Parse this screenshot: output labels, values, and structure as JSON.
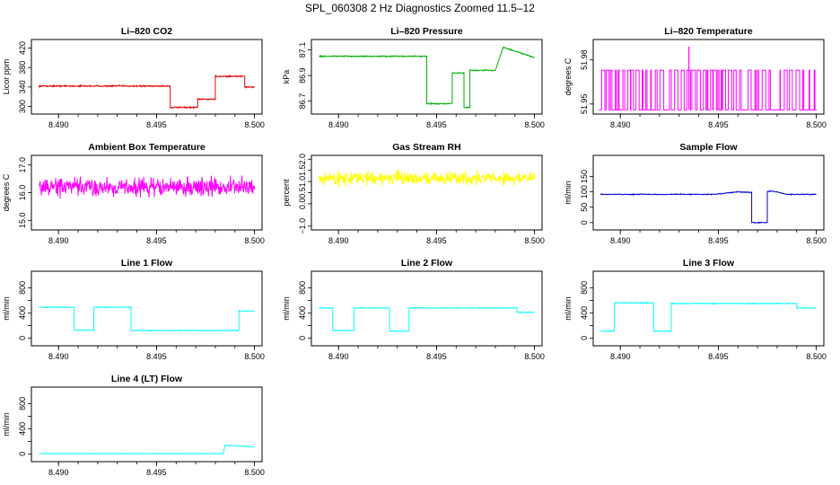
{
  "page": {
    "title": "SPL_060308  2 Hz Diagnostics Zoomed 11.5–12"
  },
  "chart_data": [
    {
      "id": "li820-co2",
      "type": "line",
      "title": "Li–820 CO2",
      "xlabel": "",
      "ylabel": "Licor ppm",
      "xlim": [
        8.4888,
        8.5002
      ],
      "ylim": [
        290,
        432
      ],
      "xticks": [
        8.49,
        8.495,
        8.5
      ],
      "xtick_labels": [
        "8.490",
        "8.495",
        "8.500"
      ],
      "yticks": [
        300,
        340,
        380,
        420
      ],
      "ytick_labels": [
        "300",
        "340",
        "380",
        "420"
      ],
      "color": "#e00000",
      "noise": 1.2,
      "series": [
        {
          "x": [
            8.489,
            8.4957,
            8.4957,
            8.4971,
            8.4971,
            8.498,
            8.498,
            8.4995,
            8.4995,
            8.5
          ],
          "y": [
            342,
            342,
            298,
            298,
            315,
            315,
            362,
            362,
            340,
            340
          ]
        }
      ]
    },
    {
      "id": "li820-pressure",
      "type": "line",
      "title": "Li–820 Pressure",
      "xlabel": "",
      "ylabel": "kPa",
      "xlim": [
        8.4888,
        8.5002
      ],
      "ylim": [
        86.62,
        87.16
      ],
      "xticks": [
        8.49,
        8.495,
        8.5
      ],
      "xtick_labels": [
        "8.490",
        "8.495",
        "8.500"
      ],
      "yticks": [
        86.7,
        86.9,
        87.1
      ],
      "ytick_labels": [
        "86.7",
        "86.9",
        "87.1"
      ],
      "color": "#00b000",
      "noise": 0.004,
      "series": [
        {
          "x": [
            8.489,
            8.4945,
            8.4945,
            8.4958,
            8.4958,
            8.4964,
            8.4964,
            8.4967,
            8.4967,
            8.498,
            8.4984,
            8.5
          ],
          "y": [
            87.05,
            87.05,
            86.68,
            86.68,
            86.92,
            86.92,
            86.65,
            86.65,
            86.94,
            86.94,
            87.12,
            87.04
          ]
        }
      ]
    },
    {
      "id": "li820-temperature",
      "type": "line",
      "title": "Li–820 Temperature",
      "xlabel": "",
      "ylabel": "degrees C",
      "xlim": [
        8.4888,
        8.5002
      ],
      "ylim": [
        51.945,
        51.992
      ],
      "xticks": [
        8.49,
        8.495,
        8.5
      ],
      "xtick_labels": [
        "8.490",
        "8.495",
        "8.500"
      ],
      "yticks": [
        51.95,
        51.98
      ],
      "ytick_labels": [
        "51.95",
        "51.98"
      ],
      "color": "#ff00ff",
      "levels": [
        51.946,
        51.973
      ],
      "spike": [
        8.4935,
        51.989
      ],
      "series": []
    },
    {
      "id": "ambient-box-temperature",
      "type": "line",
      "title": "Ambient Box Temperature",
      "xlabel": "",
      "ylabel": "degrees C",
      "xlim": [
        8.4888,
        8.5002
      ],
      "ylim": [
        14.75,
        17.25
      ],
      "xticks": [
        8.49,
        8.495,
        8.5
      ],
      "xtick_labels": [
        "8.490",
        "8.495",
        "8.500"
      ],
      "yticks": [
        15.0,
        16.0,
        17.0
      ],
      "ytick_labels": [
        "15.0",
        "16.0",
        "17.0"
      ],
      "color": "#ff00ff",
      "noise": 0.28,
      "series": [
        {
          "x": [
            8.489,
            8.5
          ],
          "y": [
            16.2,
            16.2
          ]
        }
      ]
    },
    {
      "id": "gas-stream-rh",
      "type": "line",
      "title": "Gas Stream RH",
      "xlabel": "",
      "ylabel": "percent",
      "xlim": [
        8.4888,
        8.5002
      ],
      "ylim": [
        -1.05,
        2.05
      ],
      "xticks": [
        8.49,
        8.495,
        8.5
      ],
      "xtick_labels": [
        "8.490",
        "8.495",
        "8.500"
      ],
      "yticks": [
        -1.0,
        0.0,
        0.5,
        1.0,
        1.5,
        2.0
      ],
      "ytick_labels": [
        "−1.0",
        "0.0",
        "0.5",
        "1.0",
        "1.5",
        "2.0"
      ],
      "color": "#ffff00",
      "noise": 0.25,
      "series": [
        {
          "x": [
            8.489,
            8.5
          ],
          "y": [
            1.15,
            1.15
          ]
        }
      ]
    },
    {
      "id": "sample-flow",
      "type": "line",
      "title": "Sample Flow",
      "xlabel": "",
      "ylabel": "ml/min",
      "xlim": [
        8.4888,
        8.5002
      ],
      "ylim": [
        -15,
        210
      ],
      "xticks": [
        8.49,
        8.495,
        8.5
      ],
      "xtick_labels": [
        "8.490",
        "8.495",
        "8.500"
      ],
      "yticks": [
        0,
        50,
        100,
        150
      ],
      "ytick_labels": [
        "0",
        "50",
        "100",
        "150"
      ],
      "color": "#0000d0",
      "noise": 1.2,
      "series": [
        {
          "x": [
            8.489,
            8.4948,
            8.496,
            8.4967,
            8.4967,
            8.4975,
            8.4975,
            8.4978,
            8.4985,
            8.5
          ],
          "y": [
            92,
            92,
            100,
            98,
            0,
            0,
            102,
            102,
            92,
            92
          ]
        }
      ]
    },
    {
      "id": "line-1-flow",
      "type": "line",
      "title": "Line 1 Flow",
      "xlabel": "",
      "ylabel": "ml/min",
      "xlim": [
        8.4888,
        8.5002
      ],
      "ylim": [
        -80,
        1020
      ],
      "xticks": [
        8.49,
        8.495,
        8.5
      ],
      "xtick_labels": [
        "8.490",
        "8.495",
        "8.500"
      ],
      "yticks": [
        0,
        200,
        400,
        600,
        800
      ],
      "ytick_labels": [
        "0",
        "",
        "400",
        "",
        "800"
      ],
      "color": "#00ffff",
      "noise": 5,
      "series": [
        {
          "x": [
            8.489,
            8.4908,
            8.4908,
            8.4918,
            8.4918,
            8.4937,
            8.4937,
            8.4992,
            8.4992,
            8.5
          ],
          "y": [
            490,
            490,
            125,
            125,
            490,
            490,
            120,
            120,
            430,
            430
          ]
        }
      ]
    },
    {
      "id": "line-2-flow",
      "type": "line",
      "title": "Line 2 Flow",
      "xlabel": "",
      "ylabel": "ml/min",
      "xlim": [
        8.4888,
        8.5002
      ],
      "ylim": [
        -80,
        1020
      ],
      "xticks": [
        8.49,
        8.495,
        8.5
      ],
      "xtick_labels": [
        "8.490",
        "8.495",
        "8.500"
      ],
      "yticks": [
        0,
        200,
        400,
        600,
        800
      ],
      "ytick_labels": [
        "0",
        "",
        "400",
        "",
        "800"
      ],
      "color": "#00ffff",
      "noise": 5,
      "series": [
        {
          "x": [
            8.489,
            8.4897,
            8.4897,
            8.4908,
            8.4908,
            8.4926,
            8.4926,
            8.4936,
            8.4936,
            8.4991,
            8.4991,
            8.5
          ],
          "y": [
            480,
            480,
            120,
            120,
            480,
            480,
            110,
            110,
            480,
            480,
            410,
            410
          ]
        }
      ]
    },
    {
      "id": "line-3-flow",
      "type": "line",
      "title": "Line 3 Flow",
      "xlabel": "",
      "ylabel": "ml/min",
      "xlim": [
        8.4888,
        8.5002
      ],
      "ylim": [
        -80,
        1020
      ],
      "xticks": [
        8.49,
        8.495,
        8.5
      ],
      "xtick_labels": [
        "8.490",
        "8.495",
        "8.500"
      ],
      "yticks": [
        0,
        200,
        400,
        600,
        800
      ],
      "ytick_labels": [
        "0",
        "",
        "400",
        "",
        "800"
      ],
      "color": "#00ffff",
      "noise": 6,
      "series": [
        {
          "x": [
            8.489,
            8.4897,
            8.4897,
            8.4917,
            8.4917,
            8.4926,
            8.4926,
            8.499,
            8.499,
            8.5
          ],
          "y": [
            110,
            110,
            560,
            560,
            110,
            110,
            550,
            550,
            480,
            480
          ]
        }
      ]
    },
    {
      "id": "line-4-lt-flow",
      "type": "line",
      "title": "Line 4 (LT) Flow",
      "xlabel": "",
      "ylabel": "ml/min",
      "xlim": [
        8.4888,
        8.5002
      ],
      "ylim": [
        -80,
        1020
      ],
      "xticks": [
        8.49,
        8.495,
        8.5
      ],
      "xtick_labels": [
        "8.490",
        "8.495",
        "8.500"
      ],
      "yticks": [
        0,
        200,
        400,
        600,
        800
      ],
      "ytick_labels": [
        "0",
        "",
        "400",
        "",
        "800"
      ],
      "color": "#00ffff",
      "noise": 3,
      "series": [
        {
          "x": [
            8.489,
            8.4984,
            8.4985,
            8.5
          ],
          "y": [
            5,
            5,
            140,
            110
          ]
        }
      ]
    }
  ]
}
